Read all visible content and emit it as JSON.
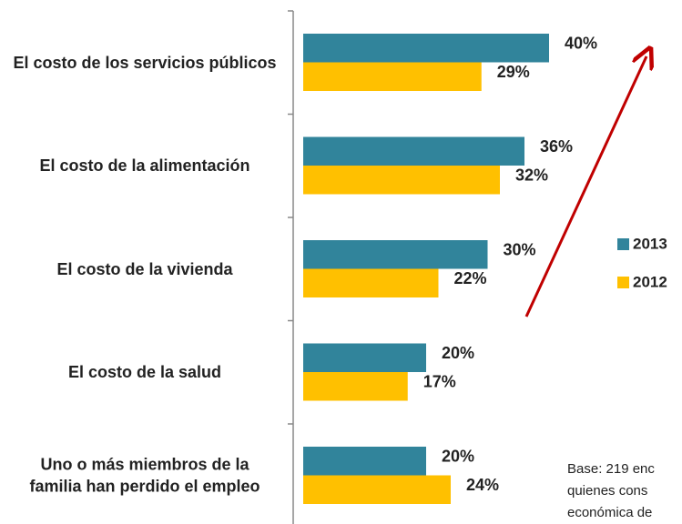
{
  "chart_data": {
    "type": "bar",
    "orientation": "horizontal",
    "categories": [
      "El costo de los servicios públicos",
      "El costo de la alimentación",
      "El costo de la vivienda",
      "El costo de la salud",
      "Uno o más miembros de la familia han perdido el empleo"
    ],
    "series": [
      {
        "name": "2013",
        "color": "#31849b",
        "values": [
          40,
          36,
          30,
          20,
          20
        ],
        "value_labels": [
          "40%",
          "36%",
          "30%",
          "20%",
          "20%"
        ]
      },
      {
        "name": "2012",
        "color": "#ffc000",
        "values": [
          29,
          32,
          22,
          17,
          24
        ],
        "value_labels": [
          "29%",
          "32%",
          "22%",
          "17%",
          "24%"
        ]
      }
    ],
    "xlim": [
      0,
      40
    ],
    "legend": "right",
    "note": [
      "Base: 219 enc",
      "quienes cons",
      "económica de"
    ]
  }
}
